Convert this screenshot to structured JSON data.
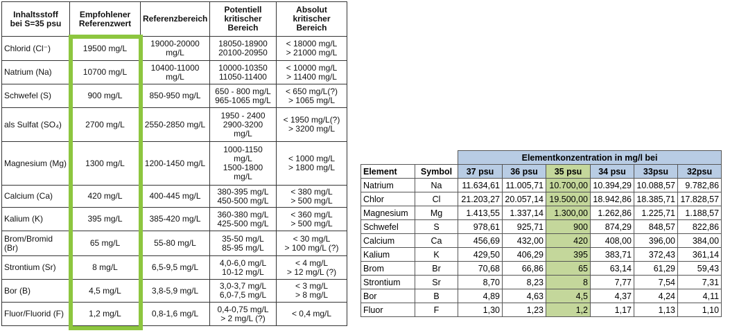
{
  "left_table": {
    "header": [
      "Inhaltsstoff\nbei S=35 psu",
      "Empfohlener\nReferenzwert",
      "Referenzbereich",
      "Potentiell\nkritischer\nBereich",
      "Absolut\nkritischer\nBereich"
    ],
    "rows": [
      [
        "Chlorid (Cl⁻)",
        "19500 mg/L",
        "19000-20000\nmg/L",
        "18050-18900\n20100-20950",
        "< 18000 mg/L\n> 21000 mg/L"
      ],
      [
        "Natrium (Na)",
        "10700 mg/L",
        "10400-11000\nmg/L",
        "10000-10350\n11050-11400",
        "< 10000 mg/L\n> 11400 mg/L"
      ],
      [
        "Schwefel (S)",
        "900 mg/L",
        "850-950 mg/L",
        "650 - 800 mg/L\n965-1065 mg/L",
        "< 650 mg/L(?)\n> 1065 mg/L"
      ],
      [
        "als Sulfat (SO₄)",
        "2700 mg/L",
        "2550-2850 mg/L",
        "1950 - 2400\n2900-3200\nmg/L",
        "< 1950 mg/L(?)\n> 3200 mg/L"
      ],
      [
        "Magnesium (Mg)",
        "1300 mg/L",
        "1200-1450 mg/L",
        "1000-1150\nmg/L\n1500-1800\nmg/L",
        "< 1000 mg/L\n> 1800 mg/L"
      ],
      [
        "Calcium (Ca)",
        "420 mg/L",
        "400-445 mg/L",
        "380-395 mg/L\n450-500 mg/L",
        "< 380 mg/L\n> 500 mg/L"
      ],
      [
        "Kalium (K)",
        "395 mg/L",
        "385-420 mg/L",
        "360-380 mg/L\n425-500 mg/L",
        "< 360 mg/L\n> 500 mg/L"
      ],
      [
        "Brom/Bromid\n(Br)",
        "65 mg/L",
        "55-80 mg/L",
        "35-50 mg/L\n85-95 mg/L",
        "< 30 mg/L\n> 100 mg/L (?)"
      ],
      [
        "Strontium (Sr)",
        "8 mg/L",
        "6,5-9,5 mg/L",
        "4,0-6,0 mg/L\n10-12 mg/L",
        "< 4 mg/L\n> 12 mg/L (?)"
      ],
      [
        "Bor (B)",
        "4,5 mg/L",
        "3,8-5,9 mg/L",
        "3,0-3,7 mg/L\n6,0-7,5 mg/L",
        "< 3 mg/L\n> 8 mg/L"
      ],
      [
        "Fluor/Fluorid (F)",
        "1,2 mg/L",
        "0,8-1,6 mg/L",
        "0,4-0,75 mg/L\n> 2 mg/L (?)",
        "< 0,4 mg/L"
      ]
    ]
  },
  "right_table": {
    "title": "Elementkonzentration in mg/l bei",
    "header": [
      "Element",
      "Symbol",
      "37 psu",
      "36 psu",
      "35 psu",
      "34 psu",
      "33psu",
      "32psu"
    ],
    "rows": [
      [
        "Natrium",
        "Na",
        "11.634,61",
        "11.005,71",
        "10.700,00",
        "10.394,29",
        "10.088,57",
        "9.782,86"
      ],
      [
        "Chlor",
        "Cl",
        "21.203,27",
        "20.057,14",
        "19.500,00",
        "18.942,86",
        "18.385,71",
        "17.828,57"
      ],
      [
        "Magnesium",
        "Mg",
        "1.413,55",
        "1.337,14",
        "1.300,00",
        "1.262,86",
        "1.225,71",
        "1.188,57"
      ],
      [
        "Schwefel",
        "S",
        "978,61",
        "925,71",
        "900",
        "874,29",
        "848,57",
        "822,86"
      ],
      [
        "Calcium",
        "Ca",
        "456,69",
        "432,00",
        "420",
        "408,00",
        "396,00",
        "384,00"
      ],
      [
        "Kalium",
        "K",
        "429,50",
        "406,29",
        "395",
        "383,71",
        "372,43",
        "361,14"
      ],
      [
        "Brom",
        "Br",
        "70,68",
        "66,86",
        "65",
        "63,14",
        "61,29",
        "59,43"
      ],
      [
        "Strontium",
        "Sr",
        "8,70",
        "8,23",
        "8",
        "7,77",
        "7,54",
        "7,31"
      ],
      [
        "Bor",
        "B",
        "4,89",
        "4,63",
        "4,5",
        "4,37",
        "4,24",
        "4,11"
      ],
      [
        "Fluor",
        "F",
        "1,30",
        "1,23",
        "1,2",
        "1,17",
        "1,13",
        "1,10"
      ]
    ]
  }
}
